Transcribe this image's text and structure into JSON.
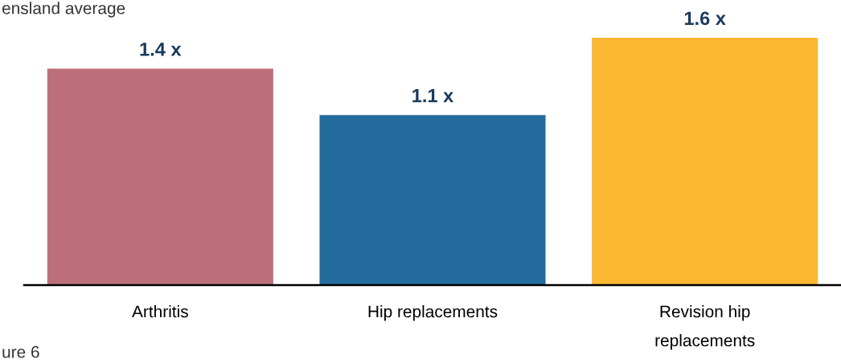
{
  "chart_data": {
    "type": "bar",
    "categories": [
      "Arthritis",
      "Hip replacements",
      "Revision hip\nreplacements"
    ],
    "values": [
      1.4,
      1.1,
      1.6
    ],
    "colors": [
      "#bc6f79",
      "#246b9e",
      "#fcb833"
    ],
    "value_labels": [
      "1.4 x",
      "1.1 x",
      "1.6 x"
    ],
    "annotations": [
      "ensland average",
      "ure 6"
    ],
    "grid": false,
    "legend": false
  }
}
